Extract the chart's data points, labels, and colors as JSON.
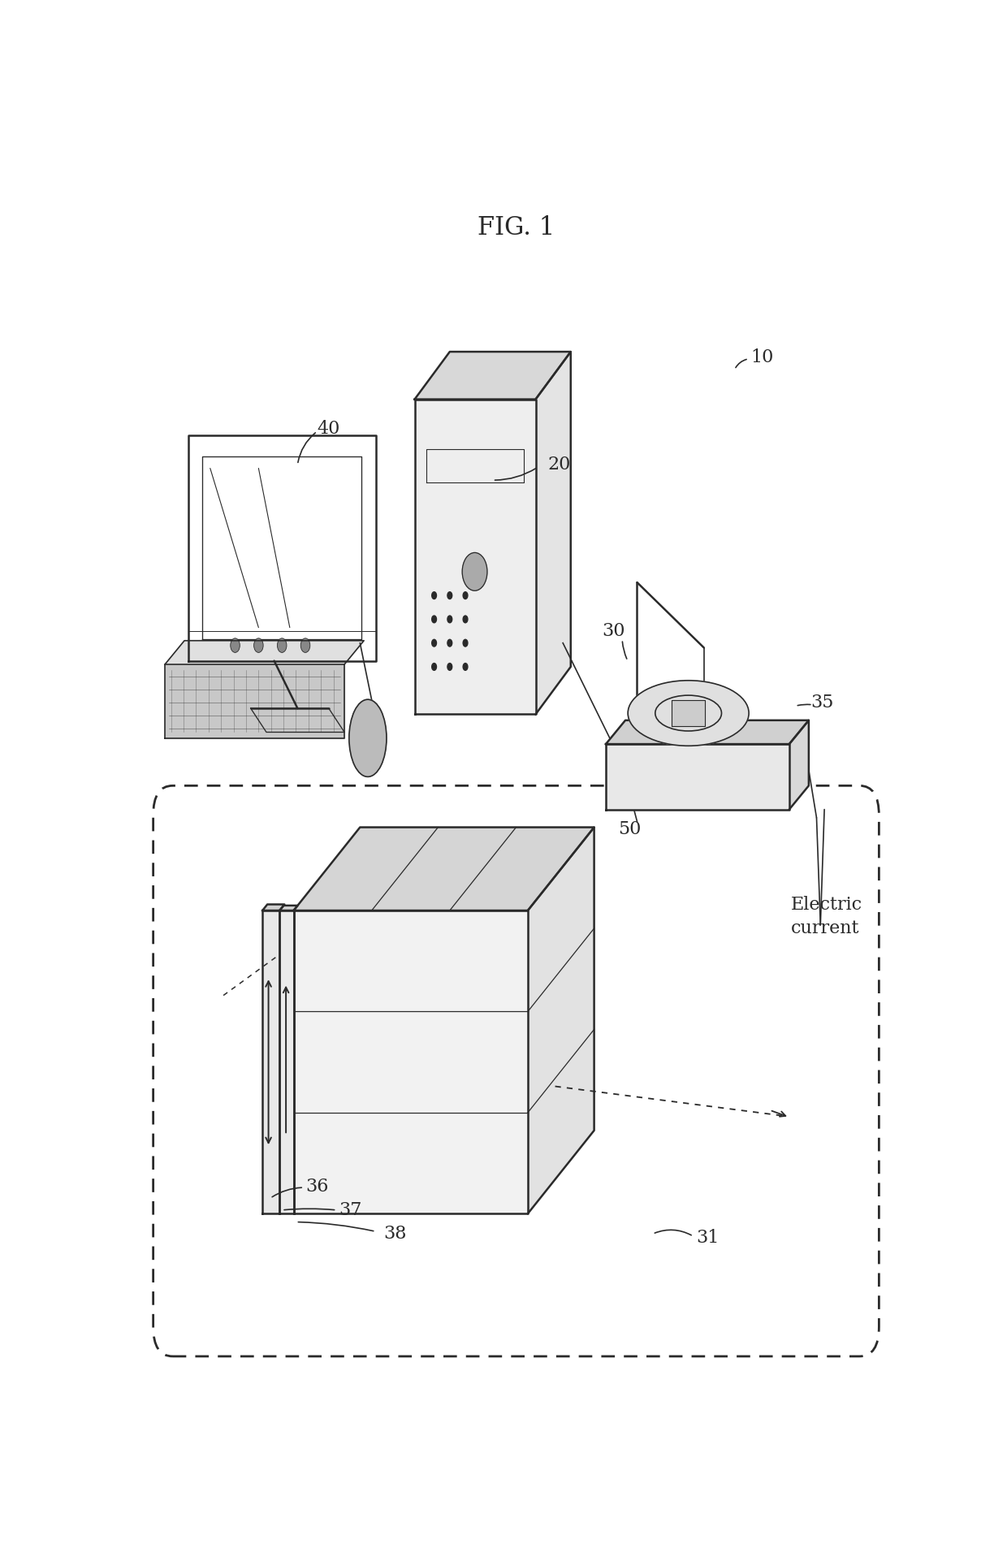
{
  "title": "FIG. 1",
  "title_fontsize": 22,
  "bg_color": "#ffffff",
  "line_color": "#2a2a2a",
  "label_color": "#2a2a2a",
  "label_fontsize": 16
}
